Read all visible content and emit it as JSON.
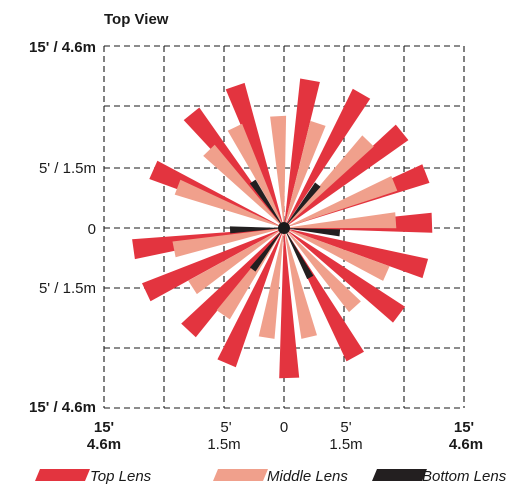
{
  "title": "Top View",
  "y_axis": {
    "top": "15' / 4.6m",
    "upper_mid": "5' / 1.5m",
    "zero": "0",
    "lower_mid": "5' / 1.5m",
    "bottom": "15' / 4.6m"
  },
  "x_axis": {
    "left_outer": [
      "15'",
      "4.6m"
    ],
    "left_mid": [
      "5'",
      "1.5m"
    ],
    "zero": "0",
    "right_mid": [
      "5'",
      "1.5m"
    ],
    "right_outer": [
      "15'",
      "4.6m"
    ]
  },
  "legend": [
    {
      "label": "Top Lens",
      "color": "#e3343f"
    },
    {
      "label": "Middle Lens",
      "color": "#f0a08c"
    },
    {
      "label": "Bottom Lens",
      "color": "#231f20"
    }
  ],
  "colors": {
    "top": "#e3343f",
    "middle": "#f0a08c",
    "bottom": "#231f20",
    "grid": "#1a1a1a"
  }
}
